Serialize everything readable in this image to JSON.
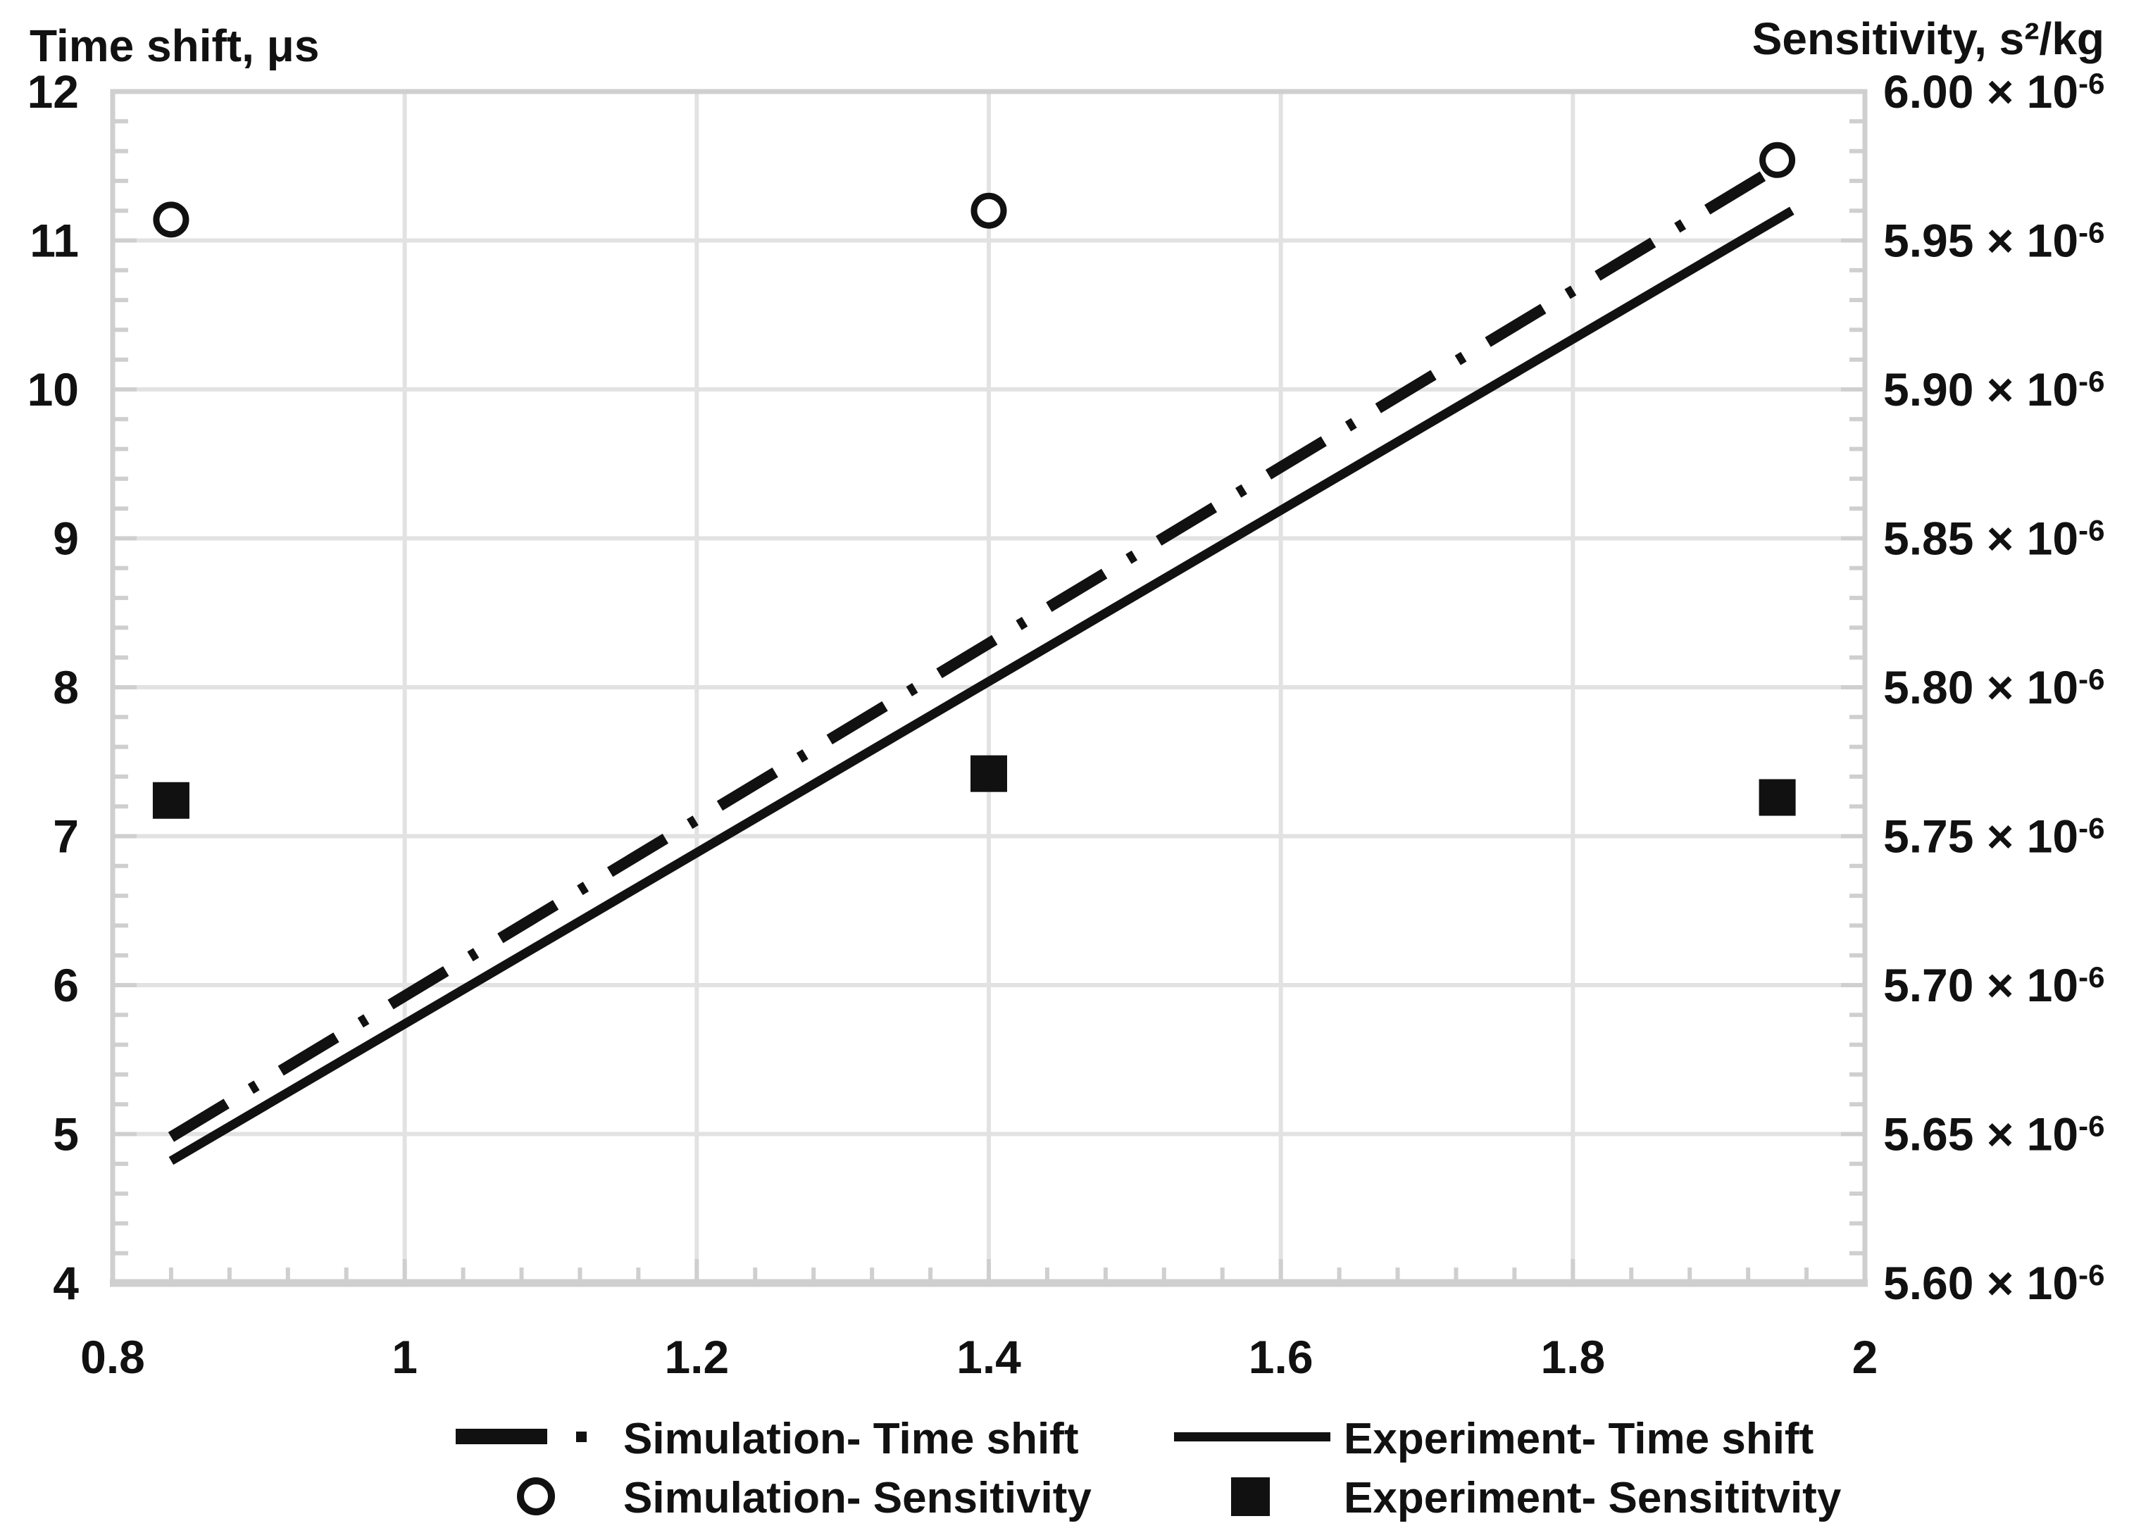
{
  "figure": {
    "left_axis": {
      "title": "Time shift, μs",
      "min": 4,
      "max": 12,
      "tick_step": 1,
      "tick_labels": [
        "12",
        "11",
        "10",
        "9",
        "8",
        "7",
        "6",
        "5",
        "4"
      ]
    },
    "right_axis": {
      "title": "Sensitivity, s²/kg",
      "min_e6": 5.6,
      "max_e6": 6.0,
      "tick_step_e6": 0.05,
      "tick_mantissas": [
        "6.00",
        "5.95",
        "5.90",
        "5.85",
        "5.80",
        "5.75",
        "5.70",
        "5.65",
        "5.60"
      ],
      "times_base": "× 10",
      "exponent": "-6"
    },
    "x_axis": {
      "min": 0.8,
      "max": 2.0,
      "tick_values": [
        0.8,
        1,
        1.2,
        1.4,
        1.6,
        1.8,
        2
      ],
      "tick_labels": [
        "0.8",
        "1",
        "1.2",
        "1.4",
        "1.6",
        "1.8",
        "2"
      ],
      "minor_tick_step": 0.04
    },
    "colors": {
      "series": "#111111",
      "gridline": "#e2e2e2",
      "axis": "#cfcfcf",
      "text": "#111111",
      "background": "#ffffff"
    }
  },
  "chart_data": {
    "type": "combo",
    "title": "",
    "xlabel": "",
    "x_range": [
      0.8,
      2.0
    ],
    "left_y": {
      "label": "Time shift, μs",
      "range": [
        4,
        12
      ]
    },
    "right_y": {
      "label": "Sensitivity, s²/kg",
      "range_e6": [
        5.6,
        6.0
      ],
      "unit": "×10⁻⁶ s²/kg"
    },
    "grid": true,
    "legend_position": "bottom",
    "series": [
      {
        "name": "Simulation- Time shift",
        "type": "line",
        "line_style": "dash-dot",
        "axis": "left",
        "points": [
          [
            0.84,
            4.98
          ],
          [
            1.95,
            11.55
          ]
        ]
      },
      {
        "name": "Experiment- Time shift",
        "type": "line",
        "line_style": "solid",
        "axis": "left",
        "points": [
          [
            0.84,
            4.82
          ],
          [
            1.95,
            11.2
          ]
        ]
      },
      {
        "name": "Simulation- Sensitivity",
        "type": "scatter",
        "marker": "open-circle",
        "axis": "right",
        "points_e6": [
          [
            0.84,
            5.957
          ],
          [
            1.4,
            5.96
          ],
          [
            1.94,
            5.977
          ]
        ]
      },
      {
        "name": "Experiment- Sensititvity",
        "type": "scatter",
        "marker": "filled-square",
        "axis": "right",
        "points_e6": [
          [
            0.84,
            5.762
          ],
          [
            1.4,
            5.771
          ],
          [
            1.94,
            5.763
          ]
        ]
      }
    ]
  },
  "legend": {
    "items": [
      {
        "label": "Simulation- Time shift",
        "marker": "dash-dot-line"
      },
      {
        "label": "Experiment- Time shift",
        "marker": "solid-line"
      },
      {
        "label": "Simulation- Sensitivity",
        "marker": "open-circle"
      },
      {
        "label": "Experiment- Sensititvity",
        "marker": "filled-square"
      }
    ]
  }
}
